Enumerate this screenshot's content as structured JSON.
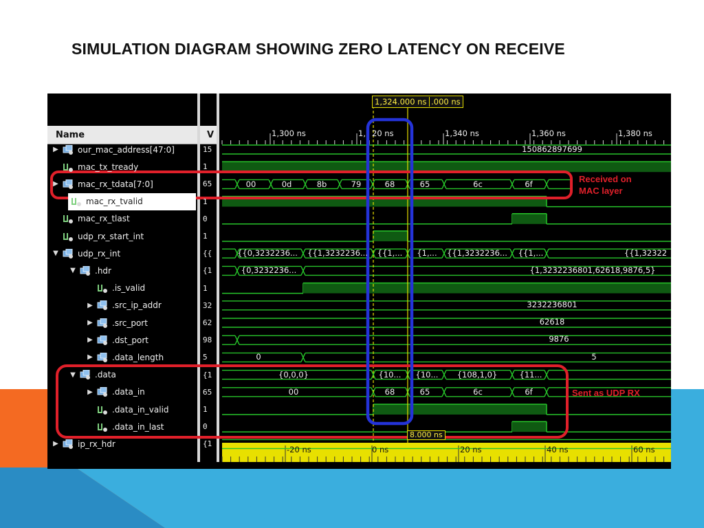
{
  "slide": {
    "title": "SIMULATION DIAGRAM SHOWING ZERO LATENCY ON RECEIVE",
    "colors": {
      "orange": "#f46a22",
      "light_blue": "#3aaede",
      "dark_blue": "#2a8cc4"
    }
  },
  "sim": {
    "cursor_readout": "1,324.000 ns",
    "cursor_readout_2": ".000 ns",
    "delta_readout": "8.000 ns",
    "header_name": "Name",
    "header_value": "V",
    "top_ticks": [
      "1,300 ns",
      "1,",
      "20 ns",
      "1,340 ns",
      "1,360 ns",
      "1,380 ns"
    ],
    "bottom_ticks": [
      "-20 ns",
      "0 ns",
      "20 ns",
      "40 ns",
      "60 ns"
    ],
    "signals": [
      {
        "name": "our_mac_address[47:0]",
        "value": "15",
        "type": "bus",
        "expand": "▶",
        "indent": 0
      },
      {
        "name": "mac_tx_tready",
        "value": "1",
        "type": "bit",
        "expand": "",
        "indent": 0
      },
      {
        "name": "mac_rx_tdata[7:0]",
        "value": "65",
        "type": "bus",
        "expand": "▶",
        "indent": 0
      },
      {
        "name": "mac_rx_tvalid",
        "value": "1",
        "type": "bit",
        "expand": "",
        "indent": 0
      },
      {
        "name": "mac_rx_tlast",
        "value": "0",
        "type": "bit",
        "expand": "",
        "indent": 0
      },
      {
        "name": "udp_rx_start_int",
        "value": "1",
        "type": "bit",
        "expand": "",
        "indent": 0
      },
      {
        "name": "udp_rx_int",
        "value": "{{",
        "type": "bus",
        "expand": "▼",
        "indent": 0
      },
      {
        "name": ".hdr",
        "value": "{1",
        "type": "bus",
        "expand": "▼",
        "indent": 1
      },
      {
        "name": ".is_valid",
        "value": "1",
        "type": "bit",
        "expand": "",
        "indent": 2
      },
      {
        "name": ".src_ip_addr",
        "value": "32",
        "type": "bus",
        "expand": "▶",
        "indent": 2
      },
      {
        "name": ".src_port",
        "value": "62",
        "type": "bus",
        "expand": "▶",
        "indent": 2
      },
      {
        "name": ".dst_port",
        "value": "98",
        "type": "bus",
        "expand": "▶",
        "indent": 2
      },
      {
        "name": ".data_length",
        "value": "5",
        "type": "bus",
        "expand": "▶",
        "indent": 2
      },
      {
        "name": ".data",
        "value": "{1",
        "type": "bus",
        "expand": "▼",
        "indent": 1
      },
      {
        "name": ".data_in",
        "value": "65",
        "type": "bus",
        "expand": "▶",
        "indent": 2
      },
      {
        "name": ".data_in_valid",
        "value": "1",
        "type": "bit",
        "expand": "",
        "indent": 2
      },
      {
        "name": ".data_in_last",
        "value": "0",
        "type": "bit",
        "expand": "",
        "indent": 2
      },
      {
        "name": "ip_rx_hdr",
        "value": "{1",
        "type": "bus",
        "expand": "▶",
        "indent": 0
      }
    ],
    "waves": {
      "our_mac_address": "150862897699",
      "mac_rx_tdata": [
        "00",
        "0d",
        "8b",
        "79",
        "68",
        "65",
        "6c",
        "6f"
      ],
      "udp_rx_int": [
        "{{0,3232236...",
        "{{1,3232236...",
        "{{1,...",
        "{1,...",
        "{{1,3232236...",
        "{{1,...",
        "{{1,32322"
      ],
      "hdr": [
        "{0,3232236...",
        "{1,3232236801,62618,9876,5}"
      ],
      "src_ip_addr": "3232236801",
      "src_port": "62618",
      "dst_port": "9876",
      "data_length": [
        "0",
        "5"
      ],
      "data": [
        "{0,0,0}",
        "{10...",
        "{10...",
        "{108,1,0}",
        "{11..."
      ],
      "data_in": [
        "00",
        "68",
        "65",
        "6c",
        "6f"
      ]
    },
    "annotations": {
      "received": [
        "Received on",
        "MAC layer"
      ],
      "sent": "Sent as UDP RX"
    }
  }
}
